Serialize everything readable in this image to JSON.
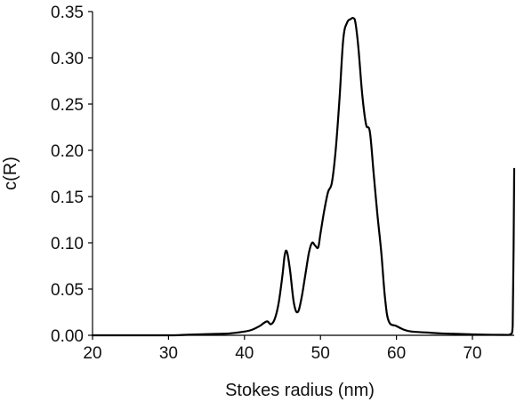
{
  "chart_data": {
    "type": "line",
    "title": "",
    "xlabel": "Stokes radius (nm)",
    "ylabel": "c(R)",
    "xlim": [
      20,
      75.5
    ],
    "ylim": [
      0,
      0.35
    ],
    "xticks": [
      20,
      30,
      40,
      50,
      60,
      70
    ],
    "yticks": [
      0.0,
      0.05,
      0.1,
      0.15,
      0.2,
      0.25,
      0.3,
      0.35
    ],
    "xtick_labels": [
      "20",
      "30",
      "40",
      "50",
      "60",
      "70"
    ],
    "ytick_labels": [
      "0.00",
      "0.05",
      "0.10",
      "0.15",
      "0.20",
      "0.25",
      "0.30",
      "0.35"
    ],
    "grid": false,
    "line_color": "#000000",
    "series": [
      {
        "x": [
          20,
          30,
          33,
          36,
          38,
          40,
          41,
          42,
          42.5,
          43,
          43.5,
          44,
          44.5,
          45,
          45.3,
          45.6,
          46,
          46.5,
          47,
          47.5,
          48,
          48.5,
          48.9,
          49.3,
          49.7,
          50,
          50.5,
          51,
          51.5,
          52,
          52.5,
          53,
          53.5,
          54,
          54.3,
          54.6,
          55,
          55.5,
          56,
          56.5,
          57,
          57.5,
          58,
          58.5,
          59,
          60,
          61,
          62,
          64,
          66,
          70,
          74,
          75,
          75.3,
          75.5
        ],
        "y": [
          0,
          0,
          0.0008,
          0.0015,
          0.002,
          0.004,
          0.006,
          0.01,
          0.013,
          0.015,
          0.012,
          0.018,
          0.035,
          0.065,
          0.087,
          0.09,
          0.07,
          0.035,
          0.025,
          0.04,
          0.065,
          0.09,
          0.1,
          0.097,
          0.095,
          0.11,
          0.135,
          0.155,
          0.165,
          0.2,
          0.255,
          0.32,
          0.338,
          0.342,
          0.343,
          0.338,
          0.31,
          0.26,
          0.228,
          0.22,
          0.175,
          0.13,
          0.09,
          0.04,
          0.015,
          0.01,
          0.006,
          0.004,
          0.003,
          0.002,
          0.001,
          0.0005,
          0.001,
          0.01,
          0.18
        ]
      }
    ]
  }
}
